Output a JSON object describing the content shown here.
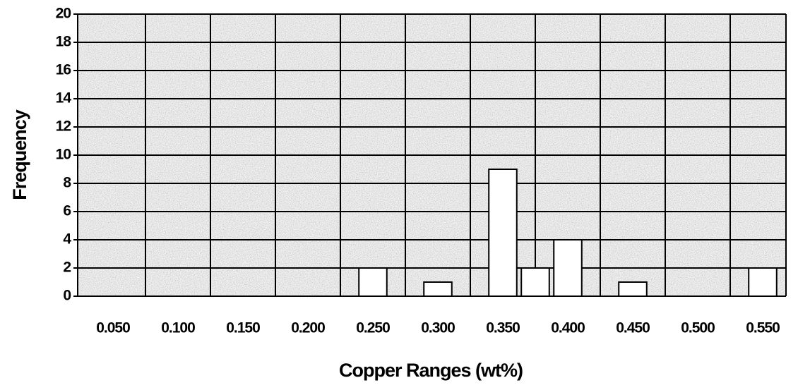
{
  "chart_data": {
    "type": "bar",
    "x_label": "Copper Ranges (wt%)",
    "y_label": "Frequency",
    "categories": [
      "0.050",
      null,
      "0.100",
      null,
      "0.150",
      null,
      "0.200",
      null,
      "0.250",
      null,
      "0.300",
      null,
      "0.350",
      null,
      "0.400",
      null,
      "0.450",
      null,
      "0.500",
      null,
      "0.550"
    ],
    "values": [
      0,
      0,
      0,
      0,
      0,
      0,
      0,
      0,
      2,
      0,
      1,
      0,
      9,
      2,
      4,
      0,
      1,
      0,
      0,
      0,
      2
    ],
    "color": "#ffffff",
    "ylim": [
      0,
      20
    ],
    "yticks": [
      0,
      2,
      4,
      6,
      8,
      10,
      12,
      14,
      16,
      18,
      20
    ],
    "grid": true
  }
}
